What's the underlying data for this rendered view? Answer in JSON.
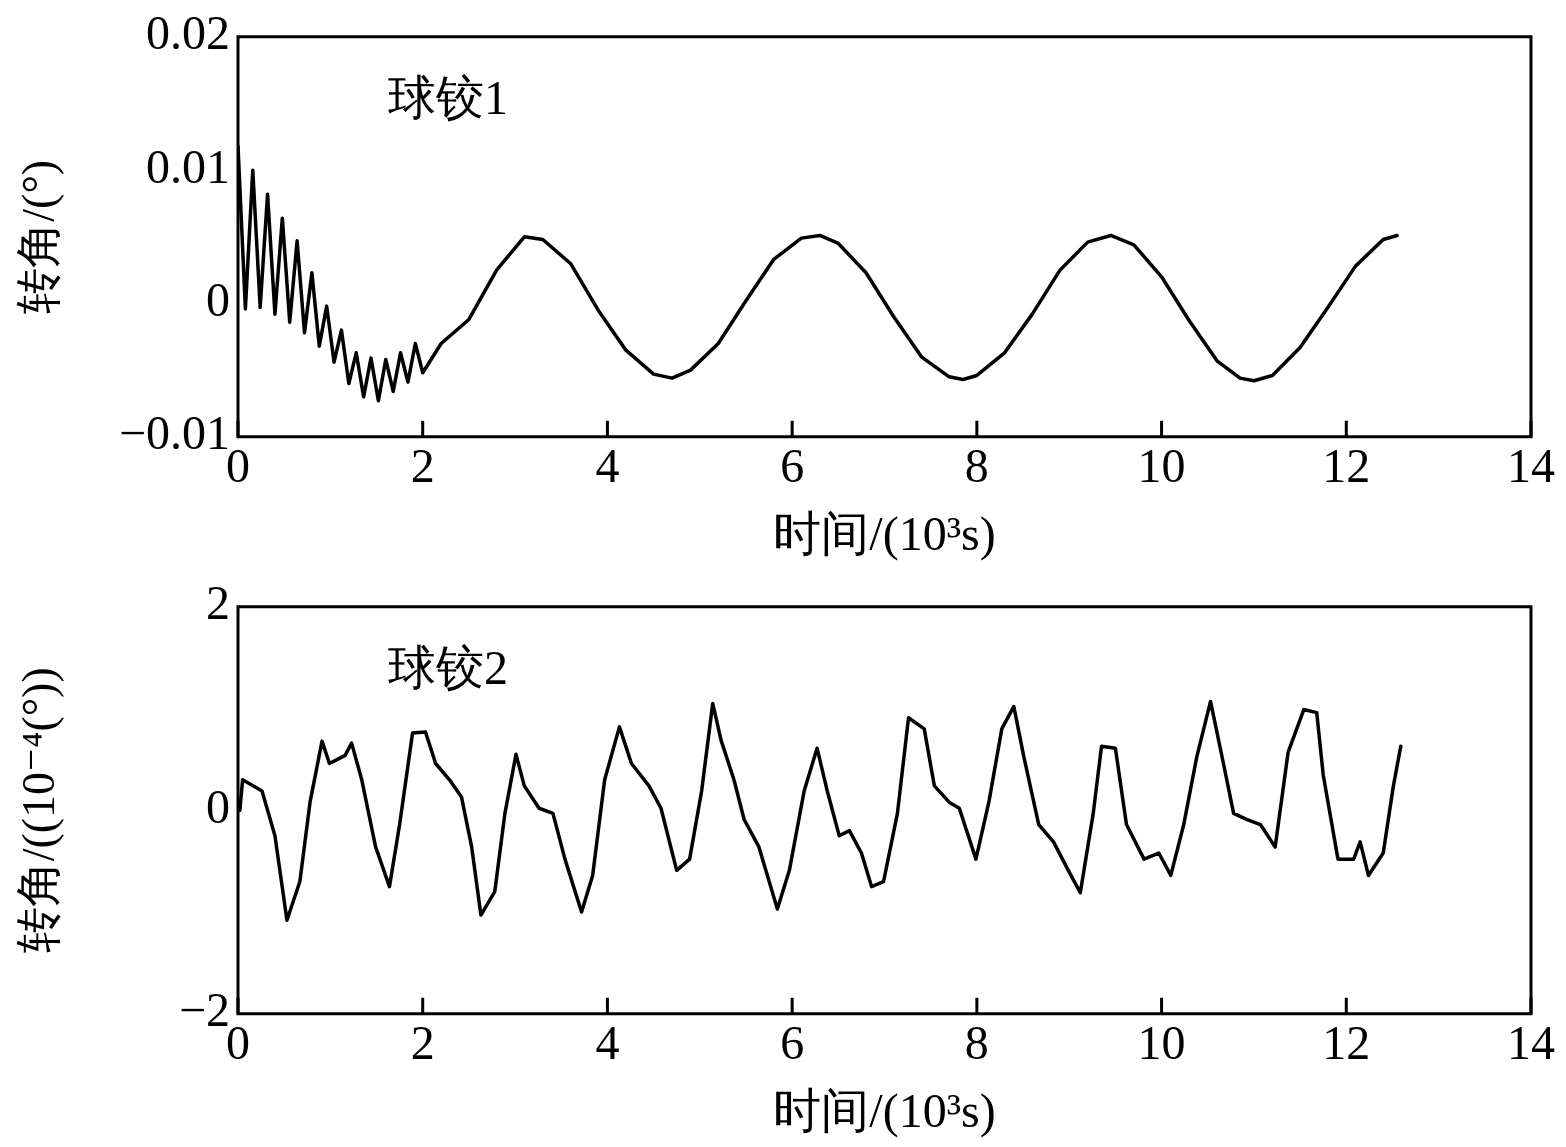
{
  "chart_data": [
    {
      "type": "line",
      "xlabel": "时间/(10³s)",
      "ylabel": "转角/(°)",
      "annotations": [
        "球铰1"
      ],
      "color": "#000000",
      "marker": "none",
      "grid": false,
      "xlim": [
        0,
        14
      ],
      "xticks": [
        0,
        2,
        4,
        6,
        8,
        10,
        12,
        14
      ],
      "ylim": [
        -0.01,
        0.02
      ],
      "yticks": [
        {
          "value": -0.01,
          "label": "−0.01"
        },
        0,
        0.01,
        0.02
      ],
      "x": [
        0,
        0.08,
        0.16,
        0.24,
        0.32,
        0.4,
        0.48,
        0.56,
        0.64,
        0.72,
        0.8,
        0.88,
        0.96,
        1.04,
        1.12,
        1.2,
        1.28,
        1.36,
        1.44,
        1.52,
        1.6,
        1.68,
        1.76,
        1.84,
        1.92,
        2.0,
        2.2,
        2.5,
        2.8,
        3.1,
        3.3,
        3.6,
        3.9,
        4.2,
        4.5,
        4.7,
        4.9,
        5.2,
        5.5,
        5.8,
        6.1,
        6.3,
        6.5,
        6.8,
        7.1,
        7.4,
        7.7,
        7.85,
        8.0,
        8.3,
        8.6,
        8.9,
        9.2,
        9.45,
        9.7,
        10.0,
        10.3,
        10.6,
        10.85,
        11.0,
        11.2,
        11.5,
        11.8,
        12.1,
        12.4,
        12.55
      ],
      "values": [
        0.0118,
        -0.0004,
        0.01,
        -0.0003,
        0.0082,
        -0.0008,
        0.0064,
        -0.0014,
        0.0047,
        -0.0022,
        0.0023,
        -0.0032,
        -0.0002,
        -0.0044,
        -0.002,
        -0.006,
        -0.0037,
        -0.007,
        -0.0041,
        -0.0073,
        -0.0042,
        -0.0066,
        -0.0037,
        -0.0059,
        -0.003,
        -0.0052,
        -0.003,
        -0.0012,
        0.0025,
        0.005,
        0.0048,
        0.003,
        -0.0005,
        -0.0035,
        -0.0053,
        -0.0056,
        -0.005,
        -0.003,
        0.0002,
        0.0033,
        0.0049,
        0.0051,
        0.0045,
        0.0023,
        -0.001,
        -0.004,
        -0.0055,
        -0.0057,
        -0.0054,
        -0.0037,
        -0.0008,
        0.0025,
        0.0046,
        0.0051,
        0.0044,
        0.002,
        -0.0013,
        -0.0043,
        -0.0056,
        -0.0058,
        -0.0054,
        -0.0033,
        -0.0003,
        0.0028,
        0.0048,
        0.0051
      ]
    },
    {
      "type": "line",
      "xlabel": "时间/(10³s)",
      "ylabel": "转角/((10⁻⁴(°))",
      "annotations": [
        "球铰2"
      ],
      "color": "#000000",
      "marker": "none",
      "grid": false,
      "xlim": [
        0,
        14
      ],
      "xticks": [
        0,
        2,
        4,
        6,
        8,
        10,
        12,
        14
      ],
      "ylim": [
        -2,
        2
      ],
      "yticks": [
        {
          "value": -2,
          "label": "−2"
        },
        0,
        2
      ],
      "x": [
        0.02,
        0.05,
        0.26,
        0.4,
        0.53,
        0.67,
        0.78,
        0.91,
        0.99,
        1.16,
        1.23,
        1.34,
        1.49,
        1.64,
        1.75,
        1.89,
        2.03,
        2.14,
        2.29,
        2.42,
        2.53,
        2.63,
        2.78,
        2.89,
        3.01,
        3.1,
        3.26,
        3.41,
        3.54,
        3.72,
        3.84,
        3.97,
        4.13,
        4.26,
        4.45,
        4.58,
        4.75,
        4.89,
        5.02,
        5.14,
        5.23,
        5.37,
        5.48,
        5.64,
        5.84,
        5.97,
        6.13,
        6.27,
        6.38,
        6.51,
        6.62,
        6.75,
        6.86,
        6.99,
        7.14,
        7.26,
        7.43,
        7.54,
        7.7,
        7.81,
        7.99,
        8.13,
        8.27,
        8.4,
        8.51,
        8.67,
        8.83,
        8.99,
        9.12,
        9.26,
        9.35,
        9.5,
        9.62,
        9.81,
        9.97,
        10.1,
        10.24,
        10.38,
        10.53,
        10.67,
        10.78,
        10.92,
        11.07,
        11.23,
        11.37,
        11.54,
        11.68,
        11.75,
        11.91,
        12.08,
        12.15,
        12.24,
        12.4,
        12.51,
        12.59
      ],
      "values": [
        0,
        0.3,
        0.19,
        -0.25,
        -1.08,
        -0.7,
        0.08,
        0.68,
        0.46,
        0.54,
        0.66,
        0.3,
        -0.36,
        -0.75,
        -0.14,
        0.76,
        0.77,
        0.46,
        0.3,
        0.13,
        -0.36,
        -1.03,
        -0.8,
        -0.03,
        0.55,
        0.24,
        0.02,
        -0.03,
        -0.48,
        -1.0,
        -0.64,
        0.3,
        0.82,
        0.46,
        0.24,
        0.02,
        -0.59,
        -0.48,
        0.19,
        1.05,
        0.69,
        0.3,
        -0.09,
        -0.36,
        -0.97,
        -0.59,
        0.19,
        0.61,
        0.19,
        -0.25,
        -0.2,
        -0.42,
        -0.75,
        -0.7,
        -0.03,
        0.91,
        0.8,
        0.24,
        0.08,
        0.02,
        -0.48,
        0.08,
        0.8,
        1.02,
        0.52,
        -0.14,
        -0.31,
        -0.59,
        -0.81,
        -0.03,
        0.63,
        0.61,
        -0.14,
        -0.48,
        -0.42,
        -0.64,
        -0.14,
        0.52,
        1.07,
        0.46,
        -0.03,
        -0.09,
        -0.14,
        -0.36,
        0.57,
        0.99,
        0.96,
        0.35,
        -0.48,
        -0.48,
        -0.31,
        -0.64,
        -0.42,
        0.24,
        0.63
      ]
    }
  ]
}
